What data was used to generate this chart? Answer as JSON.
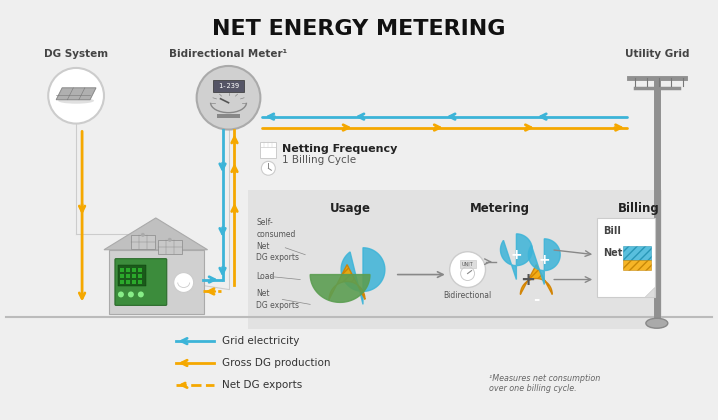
{
  "title": "NET ENERGY METERING",
  "title_fontsize": 16,
  "background_color": "#efefef",
  "blue": "#3cb4d8",
  "orange": "#f5a800",
  "green": "#5c9e52",
  "dark_gray": "#444444",
  "mid_gray": "#888888",
  "light_gray": "#cccccc",
  "dg_system_label": "DG System",
  "meter_label": "Bidirectional Meter¹",
  "grid_label": "Utility Grid",
  "netting_freq_label": "Netting Frequency",
  "netting_freq_sub": "1 Billing Cycle",
  "usage_label": "Usage",
  "metering_label": "Metering",
  "billing_label": "Billing",
  "self_consumed_label": "Self-\nconsumed\nNet\nDG exports",
  "load_label": "Load",
  "net_dg_label": "Net\nDG exports",
  "bidirectional_label": "Bidirectional",
  "bill_label": "Bill",
  "net_label": "Net",
  "legend_items": [
    {
      "label": "Grid electricity",
      "color": "#3cb4d8",
      "style": "solid"
    },
    {
      "label": "Gross DG production",
      "color": "#f5a800",
      "style": "solid"
    },
    {
      "label": "Net DG exports",
      "color": "#f5a800",
      "style": "dashed"
    }
  ],
  "footnote": "¹Measures net consumption\nover one billing cycle."
}
